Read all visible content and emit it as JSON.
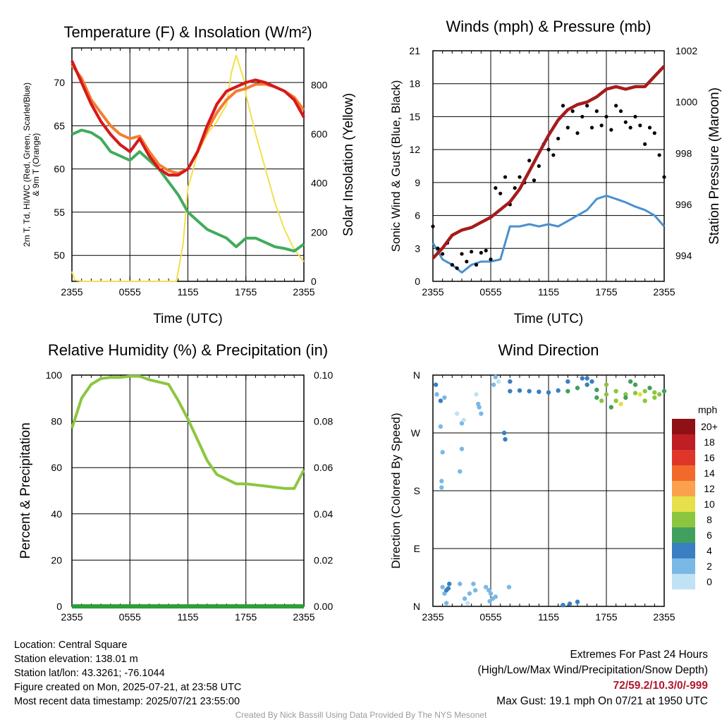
{
  "chart_data": [
    {
      "type": "line",
      "title": "Temperature (F) & Insolation (W/m²)",
      "xlabel": "Time (UTC)",
      "ylabel": "2m T, Td, HI/WC (Red, Green, Scarlet/Blue) & 9m T (Orange)",
      "ylabel_right": "Solar Insolation (Yellow)",
      "x_ticks": [
        "2355",
        "0555",
        "1155",
        "1755",
        "2355"
      ],
      "ylim": [
        47,
        74
      ],
      "y_ticks": [
        50,
        55,
        60,
        65,
        70
      ],
      "ylim_right": [
        0,
        950
      ],
      "y_ticks_right": [
        0,
        200,
        400,
        600,
        800
      ],
      "series": [
        {
          "name": "2m T",
          "color": "#d7191c",
          "x": [
            0,
            1,
            2,
            3,
            4,
            5,
            6,
            7,
            8,
            9,
            10,
            11,
            12,
            13,
            14,
            15,
            16,
            17,
            18,
            19,
            20,
            21,
            22,
            23,
            24
          ],
          "values": [
            72.5,
            70,
            67.5,
            65.5,
            64,
            62.8,
            62,
            63.5,
            61.5,
            60,
            59.3,
            59.3,
            60,
            62,
            65,
            67.5,
            69,
            69.5,
            70,
            70.3,
            70,
            69.5,
            69,
            68,
            66
          ]
        },
        {
          "name": "2m Td",
          "color": "#41ab5d",
          "x": [
            0,
            1,
            2,
            3,
            4,
            5,
            6,
            7,
            8,
            9,
            10,
            11,
            12,
            13,
            14,
            15,
            16,
            17,
            18,
            19,
            20,
            21,
            22,
            23,
            24
          ],
          "values": [
            64,
            64.5,
            64.2,
            63.5,
            62,
            61.5,
            61,
            62,
            61,
            60,
            58.5,
            57,
            55,
            54,
            53,
            52.5,
            52,
            51,
            52,
            52,
            51.5,
            51,
            50.8,
            50.5,
            51.3
          ]
        },
        {
          "name": "HI/WC",
          "color": "#b2182b",
          "x": [
            0,
            1,
            2,
            3,
            4,
            5,
            6,
            7,
            8,
            9,
            10,
            11,
            12,
            13,
            14,
            15,
            16,
            17,
            18,
            19,
            20,
            21,
            22,
            23,
            24
          ],
          "values": [
            72.5,
            70,
            67.5,
            65.5,
            64,
            62.8,
            62,
            63.5,
            61.5,
            60,
            59.3,
            59.3,
            60,
            62,
            65,
            67.5,
            69,
            69.5,
            70,
            70.3,
            70,
            69.5,
            69,
            68,
            66
          ]
        },
        {
          "name": "9m T",
          "color": "#f57d2e",
          "x": [
            0,
            1,
            2,
            3,
            4,
            5,
            6,
            7,
            8,
            9,
            10,
            11,
            12,
            13,
            14,
            15,
            16,
            17,
            18,
            19,
            20,
            21,
            22,
            23,
            24
          ],
          "values": [
            72,
            70.5,
            68,
            66.5,
            65,
            64,
            63.5,
            63.8,
            62,
            60.5,
            59.8,
            59.5,
            60,
            62,
            64.5,
            66.5,
            68,
            69,
            69.3,
            69.8,
            69.8,
            69.5,
            69,
            68.3,
            66.8
          ]
        }
      ],
      "series_right": [
        {
          "name": "Solar Insolation",
          "color": "#f2e04b",
          "x": [
            0,
            0.3,
            1,
            2,
            3,
            4,
            5,
            6,
            7,
            8,
            9,
            10,
            10.8,
            11,
            11.5,
            12,
            13,
            14,
            15,
            16,
            16.5,
            17,
            17.8,
            18,
            19,
            20,
            21,
            22,
            23,
            24
          ],
          "values": [
            40,
            5,
            0,
            0,
            0,
            0,
            0,
            0,
            0,
            0,
            0,
            0,
            0,
            40,
            150,
            380,
            520,
            600,
            650,
            720,
            850,
            920,
            820,
            760,
            600,
            460,
            320,
            210,
            130,
            80
          ]
        }
      ]
    },
    {
      "type": "line",
      "title": "Winds (mph) & Pressure (mb)",
      "xlabel": "Time (UTC)",
      "ylabel": "Sonic Wind & Gust (Blue, Black)",
      "ylabel_right": "Station Pressure (Maroon)",
      "x_ticks": [
        "2355",
        "0555",
        "1155",
        "1755",
        "2355"
      ],
      "ylim": [
        0,
        21
      ],
      "y_ticks": [
        0,
        3,
        6,
        9,
        12,
        15,
        18,
        21
      ],
      "ylim_right": [
        993,
        1002
      ],
      "y_ticks_right": [
        994,
        996,
        998,
        1000,
        1002
      ],
      "series": [
        {
          "name": "Sonic Wind",
          "color": "#4a90d0",
          "x": [
            0,
            1,
            2,
            3,
            4,
            5,
            6,
            7,
            8,
            9,
            10,
            11,
            12,
            13,
            14,
            15,
            16,
            17,
            18,
            19,
            20,
            21,
            22,
            23,
            24
          ],
          "values": [
            3.5,
            2,
            1.5,
            0.8,
            1.5,
            1.8,
            1.8,
            2,
            5,
            5,
            5.2,
            5,
            5.2,
            5,
            5.5,
            6,
            6.5,
            7.5,
            7.8,
            7.5,
            7.2,
            6.8,
            6.5,
            6,
            5
          ]
        },
        {
          "name": "Gust",
          "color": "#000000",
          "x": [
            0,
            0.5,
            1,
            1.5,
            2,
            2.5,
            3,
            3.5,
            4,
            4.5,
            5,
            5.5,
            6,
            6.5,
            7,
            7.5,
            8,
            8.5,
            9,
            9.5,
            10,
            10.5,
            11,
            11.5,
            12,
            12.5,
            13,
            13.5,
            14,
            14.5,
            15,
            15.5,
            16,
            16.5,
            17,
            17.5,
            18,
            18.5,
            19,
            19.5,
            20,
            20.5,
            21,
            21.5,
            22,
            22.5,
            23,
            23.5,
            24
          ],
          "values": [
            5,
            3,
            2.5,
            3.5,
            1.5,
            1.2,
            2.5,
            1.8,
            2.7,
            1.5,
            2.6,
            2.8,
            2,
            8.5,
            8,
            9.5,
            7,
            8.5,
            9.5,
            9,
            11,
            9.2,
            10.5,
            12.5,
            12,
            11.5,
            13,
            16,
            14,
            15.5,
            13.5,
            15,
            16,
            14,
            15.5,
            14.2,
            15,
            13.8,
            16,
            15.5,
            14.5,
            14,
            15,
            14.2,
            12.5,
            14,
            13.5,
            11.5,
            9.5
          ]
        }
      ],
      "series_right": [
        {
          "name": "Station Pressure",
          "color": "#a51c1c",
          "x": [
            0,
            1,
            2,
            3,
            4,
            5,
            6,
            7,
            8,
            9,
            10,
            11,
            12,
            13,
            14,
            15,
            16,
            17,
            18,
            19,
            20,
            21,
            22,
            23,
            24
          ],
          "values": [
            993.9,
            994.3,
            994.8,
            995,
            995.1,
            995.3,
            995.5,
            995.8,
            996.1,
            996.6,
            997.3,
            998,
            998.7,
            999.3,
            999.7,
            999.9,
            1000,
            1000.2,
            1000.5,
            1000.6,
            1000.5,
            1000.6,
            1000.6,
            1001,
            1001.4
          ]
        }
      ]
    },
    {
      "type": "line",
      "title": "Relative Humidity (%) & Precipitation (in)",
      "xlabel": "",
      "ylabel": "Percent & Precipitation",
      "x_ticks": [
        "2355",
        "0555",
        "1155",
        "1755",
        "2355"
      ],
      "ylim": [
        0,
        100
      ],
      "y_ticks": [
        0,
        20,
        40,
        60,
        80,
        100
      ],
      "ylim_right": [
        0,
        0.1
      ],
      "y_ticks_right": [
        "0.00",
        "0.02",
        "0.04",
        "0.06",
        "0.08",
        "0.10"
      ],
      "series": [
        {
          "name": "Relative Humidity",
          "color": "#8cc63f",
          "x": [
            0,
            1,
            2,
            3,
            4,
            5,
            6,
            7,
            8,
            9,
            10,
            11,
            12,
            13,
            14,
            15,
            16,
            17,
            18,
            19,
            20,
            21,
            22,
            23,
            24
          ],
          "values": [
            77,
            90,
            96,
            98.5,
            99,
            99,
            99.5,
            99.5,
            98,
            97,
            96,
            89,
            81,
            72,
            63,
            57,
            55,
            53,
            53,
            52.5,
            52,
            51.5,
            51,
            51,
            59
          ]
        },
        {
          "name": "Precipitation",
          "color": "#2e9e3a",
          "x": [
            0,
            24
          ],
          "values": [
            0,
            0
          ]
        }
      ]
    },
    {
      "type": "scatter",
      "title": "Wind Direction",
      "xlabel": "",
      "ylabel": "Direction (Colored By Speed)",
      "x_ticks": [
        "2355",
        "0555",
        "1155",
        "1755",
        "2355"
      ],
      "y_ticks": [
        "N",
        "W",
        "S",
        "E",
        "N"
      ],
      "ylim": [
        0,
        360
      ],
      "colorbar_title": "mph",
      "colorbar": [
        {
          "label": "20+",
          "color": "#8f1015"
        },
        {
          "label": "18",
          "color": "#be1e24"
        },
        {
          "label": "16",
          "color": "#e0362a"
        },
        {
          "label": "14",
          "color": "#f16a2b"
        },
        {
          "label": "12",
          "color": "#fba04c"
        },
        {
          "label": "10",
          "color": "#e6e04a"
        },
        {
          "label": "8",
          "color": "#8cc63f"
        },
        {
          "label": "6",
          "color": "#41a05d"
        },
        {
          "label": "4",
          "color": "#3a7fc1"
        },
        {
          "label": "2",
          "color": "#7ab8e6"
        },
        {
          "label": "0",
          "color": "#bfe3f5"
        }
      ],
      "points": [
        [
          0.3,
          345,
          3
        ],
        [
          0.4,
          330,
          2
        ],
        [
          0.8,
          320,
          3
        ],
        [
          1.2,
          325,
          2
        ],
        [
          0.8,
          280,
          1
        ],
        [
          1,
          240,
          1
        ],
        [
          0.9,
          195,
          2
        ],
        [
          0.9,
          185,
          2
        ],
        [
          1,
          30,
          2
        ],
        [
          1.2,
          20,
          2
        ],
        [
          1.4,
          25,
          3
        ],
        [
          1.6,
          28,
          3
        ],
        [
          1.7,
          35,
          3
        ],
        [
          1.4,
          5,
          2
        ],
        [
          2.5,
          300,
          0
        ],
        [
          2.8,
          210,
          1
        ],
        [
          3,
          285,
          1
        ],
        [
          3.2,
          290,
          0
        ],
        [
          3,
          245,
          1
        ],
        [
          2.8,
          35,
          1
        ],
        [
          3.3,
          12,
          1
        ],
        [
          3.6,
          5,
          0
        ],
        [
          3.8,
          20,
          1
        ],
        [
          4.2,
          35,
          1
        ],
        [
          4.4,
          25,
          1
        ],
        [
          4.5,
          330,
          0
        ],
        [
          4.7,
          315,
          1
        ],
        [
          4.8,
          310,
          2
        ],
        [
          5,
          300,
          1
        ],
        [
          5.5,
          30,
          1
        ],
        [
          5.8,
          25,
          2
        ],
        [
          6,
          20,
          2
        ],
        [
          5.9,
          8,
          1
        ],
        [
          6.2,
          12,
          2
        ],
        [
          6.5,
          15,
          1
        ],
        [
          6.3,
          345,
          1
        ],
        [
          6.5,
          357,
          1
        ],
        [
          6.8,
          350,
          0
        ],
        [
          7.4,
          270,
          3
        ],
        [
          7.5,
          260,
          3
        ],
        [
          7.9,
          30,
          1
        ],
        [
          8,
          350,
          4
        ],
        [
          8,
          335,
          4
        ],
        [
          9,
          336,
          4
        ],
        [
          10,
          335,
          4
        ],
        [
          11,
          334,
          4
        ],
        [
          12,
          333,
          4
        ],
        [
          13,
          336,
          4
        ],
        [
          14,
          335,
          5
        ],
        [
          15,
          340,
          5
        ],
        [
          16,
          345,
          4
        ],
        [
          16.5,
          350,
          4
        ],
        [
          17,
          337,
          6
        ],
        [
          18,
          330,
          8
        ],
        [
          19,
          335,
          7
        ],
        [
          20,
          330,
          8
        ],
        [
          21,
          332,
          7
        ],
        [
          22,
          335,
          8
        ],
        [
          23,
          333,
          7
        ],
        [
          24,
          335,
          6
        ],
        [
          14,
          350,
          4
        ],
        [
          15.5,
          355,
          4
        ],
        [
          16,
          355,
          4
        ],
        [
          13.5,
          2,
          4
        ],
        [
          14.2,
          4,
          4
        ],
        [
          15,
          7,
          4
        ],
        [
          17.5,
          320,
          7
        ],
        [
          18,
          345,
          7
        ],
        [
          19,
          320,
          8
        ],
        [
          19.5,
          315,
          10
        ],
        [
          20,
          325,
          6
        ],
        [
          21,
          345,
          6
        ],
        [
          22,
          320,
          7
        ],
        [
          23,
          325,
          8
        ],
        [
          22.5,
          340,
          6
        ],
        [
          17,
          325,
          6
        ],
        [
          18.5,
          310,
          6
        ],
        [
          20.5,
          350,
          6
        ],
        [
          21.5,
          330,
          9
        ],
        [
          23.5,
          330,
          7
        ]
      ]
    }
  ],
  "footer": {
    "location": "Location: Central Square",
    "elevation": "Station elevation: 138.01 m",
    "latlon": "Station lat/lon: 43.3261; -76.1044",
    "created": "Figure created on Mon, 2025-07-21, at 23:58 UTC",
    "recent": "Most recent data timestamp: 2025/07/21 23:55:00",
    "extremes_title": "Extremes For Past 24 Hours",
    "extremes_desc": "(High/Low/Max Wind/Precipitation/Snow Depth)",
    "extremes_values": "72/59.2/10.3/0/-999",
    "max_gust": "Max Gust: 19.1 mph On 07/21 at 1950 UTC",
    "credit": "Created By Nick Bassill Using Data Provided By The NYS Mesonet"
  }
}
